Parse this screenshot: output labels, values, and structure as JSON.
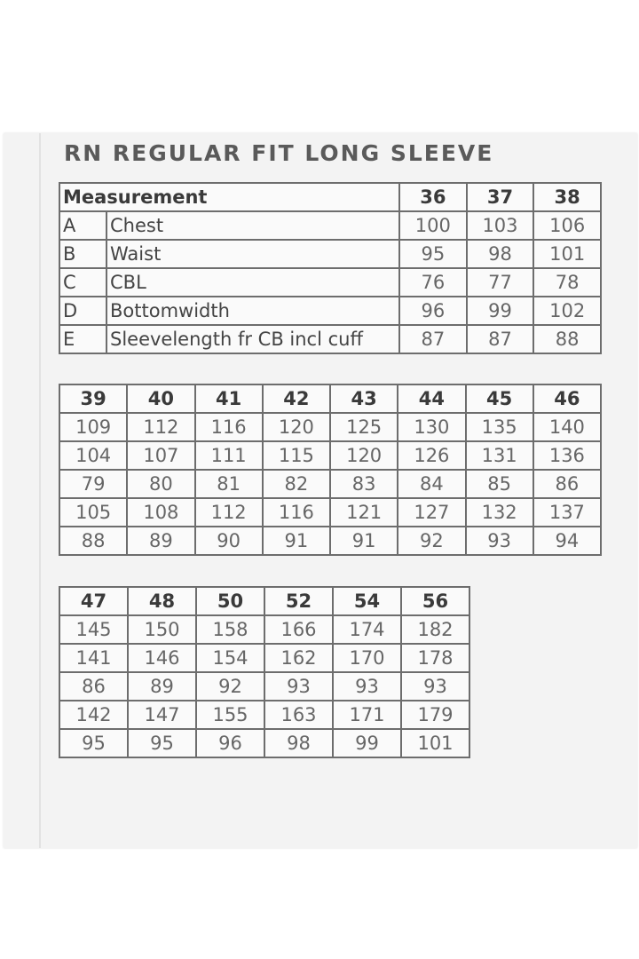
{
  "title": "RN REGULAR FIT LONG SLEEVE",
  "measurement_label": "Measurement",
  "rows": [
    {
      "code": "A",
      "name": "Chest"
    },
    {
      "code": "B",
      "name": "Waist"
    },
    {
      "code": "C",
      "name": "CBL"
    },
    {
      "code": "D",
      "name": "Bottomwidth"
    },
    {
      "code": "E",
      "name": "Sleevelength fr CB incl cuff"
    }
  ],
  "tables": [
    {
      "sizes": [
        "36",
        "37",
        "38"
      ],
      "values": [
        [
          "100",
          "103",
          "106"
        ],
        [
          "95",
          "98",
          "101"
        ],
        [
          "76",
          "77",
          "78"
        ],
        [
          "96",
          "99",
          "102"
        ],
        [
          "87",
          "87",
          "88"
        ]
      ]
    },
    {
      "sizes": [
        "39",
        "40",
        "41",
        "42",
        "43",
        "44",
        "45",
        "46"
      ],
      "values": [
        [
          "109",
          "112",
          "116",
          "120",
          "125",
          "130",
          "135",
          "140"
        ],
        [
          "104",
          "107",
          "111",
          "115",
          "120",
          "126",
          "131",
          "136"
        ],
        [
          "79",
          "80",
          "81",
          "82",
          "83",
          "84",
          "85",
          "86"
        ],
        [
          "105",
          "108",
          "112",
          "116",
          "121",
          "127",
          "132",
          "137"
        ],
        [
          "88",
          "89",
          "90",
          "91",
          "91",
          "92",
          "93",
          "94"
        ]
      ]
    },
    {
      "sizes": [
        "47",
        "48",
        "50",
        "52",
        "54",
        "56"
      ],
      "values": [
        [
          "145",
          "150",
          "158",
          "166",
          "174",
          "182"
        ],
        [
          "141",
          "146",
          "154",
          "162",
          "170",
          "178"
        ],
        [
          "86",
          "89",
          "92",
          "93",
          "93",
          "93"
        ],
        [
          "142",
          "147",
          "155",
          "163",
          "171",
          "179"
        ],
        [
          "95",
          "95",
          "96",
          "98",
          "99",
          "101"
        ]
      ]
    }
  ]
}
